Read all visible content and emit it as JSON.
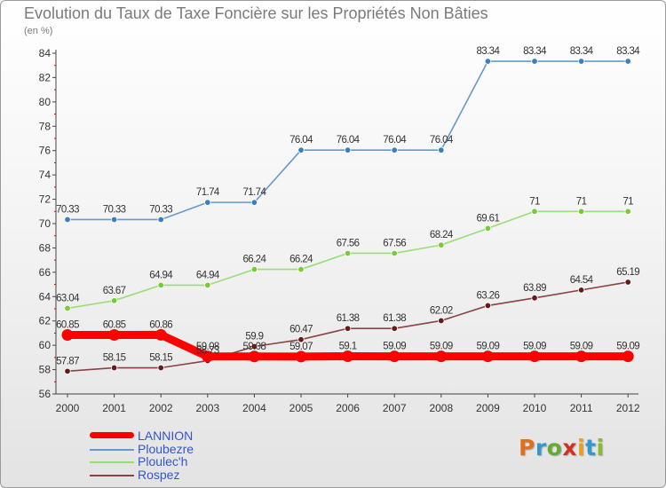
{
  "title": "Evolution du Taux de Taxe Foncière sur les Propriétés Non Bâties",
  "unit_label": "(en %)",
  "logo": {
    "text": "Proxiti",
    "letter_colors": [
      "#e07020",
      "#3399cc",
      "#66aa33",
      "#cc3322",
      "#e8a020",
      "#3399cc",
      "#88bb33"
    ]
  },
  "chart_data": {
    "type": "line",
    "title": "Evolution du Taux de Taxe Foncière sur les Propriétés Non Bâties",
    "ylabel": "(en %)",
    "xlabel": "",
    "x": [
      "2000",
      "2001",
      "2002",
      "2003",
      "2004",
      "2005",
      "2006",
      "2007",
      "2008",
      "2009",
      "2010",
      "2011",
      "2012"
    ],
    "ylim": [
      56,
      84
    ],
    "yticks": [
      56,
      58,
      60,
      62,
      64,
      66,
      68,
      70,
      72,
      74,
      76,
      78,
      80,
      82,
      84
    ],
    "grid": false,
    "legend": "bottom-left",
    "series": [
      {
        "name": "LANNION",
        "color": "#ff0000",
        "values": [
          60.85,
          60.85,
          60.86,
          59.08,
          59.08,
          59.07,
          59.1,
          59.09,
          59.09,
          59.09,
          59.09,
          59.09,
          59.09
        ],
        "labels": [
          "60.85",
          "60.85",
          "60.86",
          "59.08",
          "59.08",
          "59.07",
          "59.1",
          "59.09",
          "59.09",
          "59.09",
          "59.09",
          "59.09",
          "59.09"
        ]
      },
      {
        "name": "Ploubezre",
        "color": "#6699cc",
        "marker_color": "#3a7fc0",
        "values": [
          70.33,
          70.33,
          70.33,
          71.74,
          71.74,
          76.04,
          76.04,
          76.04,
          76.04,
          83.34,
          83.34,
          83.34,
          83.34
        ],
        "labels": [
          "70.33",
          "70.33",
          "70.33",
          "71.74",
          "71.74",
          "76.04",
          "76.04",
          "76.04",
          "76.04",
          "83.34",
          "83.34",
          "83.34",
          "83.34"
        ]
      },
      {
        "name": "Ploulec'h",
        "color": "#99dd77",
        "marker_color": "#77cc33",
        "values": [
          63.04,
          63.67,
          64.94,
          64.94,
          66.24,
          66.24,
          67.56,
          67.56,
          68.24,
          69.61,
          71,
          71,
          71
        ],
        "labels": [
          "63.04",
          "63.67",
          "64.94",
          "64.94",
          "66.24",
          "66.24",
          "67.56",
          "67.56",
          "68.24",
          "69.61",
          "71",
          "71",
          "71"
        ]
      },
      {
        "name": "Rospez",
        "color": "#884444",
        "marker_color": "#661a1a",
        "values": [
          57.87,
          58.15,
          58.15,
          58.73,
          59.9,
          60.47,
          61.38,
          61.38,
          62.02,
          63.26,
          63.89,
          64.54,
          65.19
        ],
        "labels": [
          "57.87",
          "58.15",
          "58.15",
          "58.73",
          "59.9",
          "60.47",
          "61.38",
          "61.38",
          "62.02",
          "63.26",
          "63.89",
          "64.54",
          "65.19"
        ]
      }
    ]
  }
}
